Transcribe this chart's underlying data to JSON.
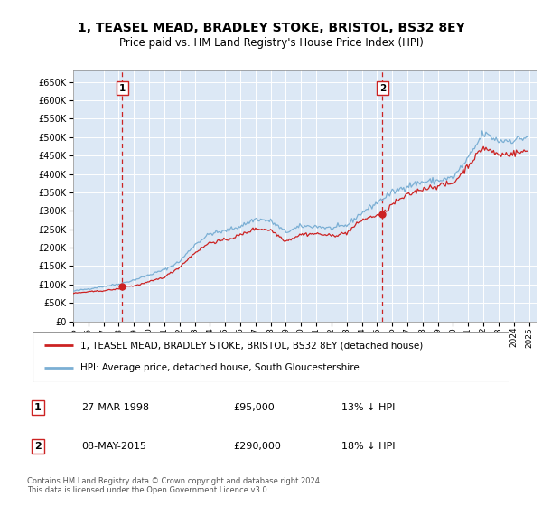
{
  "title": "1, TEASEL MEAD, BRADLEY STOKE, BRISTOL, BS32 8EY",
  "subtitle": "Price paid vs. HM Land Registry's House Price Index (HPI)",
  "hpi_color": "#7bafd4",
  "price_color": "#cc2222",
  "dashed_line_color": "#cc2222",
  "plot_bg_color": "#dce8f5",
  "ylim_max": 680000,
  "yticks": [
    0,
    50000,
    100000,
    150000,
    200000,
    250000,
    300000,
    350000,
    400000,
    450000,
    500000,
    550000,
    600000,
    650000
  ],
  "legend_label_price": "1, TEASEL MEAD, BRADLEY STOKE, BRISTOL, BS32 8EY (detached house)",
  "legend_label_hpi": "HPI: Average price, detached house, South Gloucestershire",
  "marker1_date": "27-MAR-1998",
  "marker1_price": 95000,
  "marker1_label": "13% ↓ HPI",
  "marker1_x": 1998.23,
  "marker2_date": "08-MAY-2015",
  "marker2_price": 290000,
  "marker2_label": "18% ↓ HPI",
  "marker2_x": 2015.36,
  "footnote": "Contains HM Land Registry data © Crown copyright and database right 2024.\nThis data is licensed under the Open Government Licence v3.0."
}
